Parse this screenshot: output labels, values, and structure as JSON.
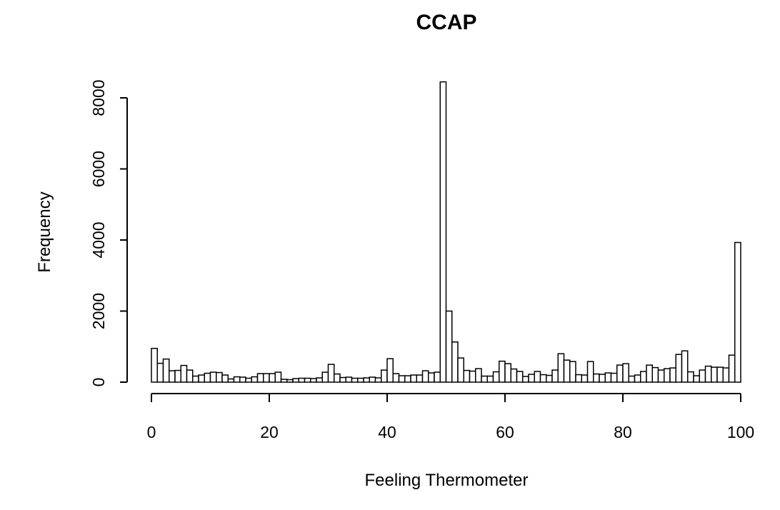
{
  "chart_data": {
    "type": "bar",
    "title": "CCAP",
    "xlabel": "Feeling Thermometer",
    "ylabel": "Frequency",
    "xlim": [
      0,
      100
    ],
    "ylim": [
      0,
      8000
    ],
    "x_ticks": [
      0,
      20,
      40,
      60,
      80,
      100
    ],
    "y_ticks": [
      0,
      2000,
      4000,
      6000,
      8000
    ],
    "bar_fill": "#ffffff",
    "bar_stroke": "#000000",
    "bin_width": 1,
    "bin_starts": [
      0,
      1,
      2,
      3,
      4,
      5,
      6,
      7,
      8,
      9,
      10,
      11,
      12,
      13,
      14,
      15,
      16,
      17,
      18,
      19,
      20,
      21,
      22,
      23,
      24,
      25,
      26,
      27,
      28,
      29,
      30,
      31,
      32,
      33,
      34,
      35,
      36,
      37,
      38,
      39,
      40,
      41,
      42,
      43,
      44,
      45,
      46,
      47,
      48,
      49,
      50,
      51,
      52,
      53,
      54,
      55,
      56,
      57,
      58,
      59,
      60,
      61,
      62,
      63,
      64,
      65,
      66,
      67,
      68,
      69,
      70,
      71,
      72,
      73,
      74,
      75,
      76,
      77,
      78,
      79,
      80,
      81,
      82,
      83,
      84,
      85,
      86,
      87,
      88,
      89,
      90,
      91,
      92,
      93,
      94,
      95,
      96,
      97,
      98,
      99
    ],
    "values": [
      950,
      530,
      650,
      320,
      330,
      470,
      340,
      170,
      200,
      250,
      280,
      270,
      200,
      90,
      150,
      140,
      110,
      150,
      240,
      240,
      240,
      280,
      80,
      70,
      100,
      110,
      110,
      100,
      120,
      280,
      500,
      230,
      130,
      140,
      110,
      110,
      120,
      140,
      120,
      340,
      660,
      240,
      180,
      180,
      200,
      200,
      320,
      260,
      280,
      8450,
      2000,
      1130,
      680,
      330,
      310,
      380,
      170,
      170,
      290,
      590,
      520,
      370,
      300,
      160,
      220,
      300,
      210,
      190,
      340,
      800,
      620,
      580,
      210,
      200,
      580,
      230,
      220,
      260,
      250,
      480,
      520,
      170,
      200,
      300,
      480,
      410,
      340,
      380,
      400,
      780,
      880,
      290,
      180,
      340,
      450,
      420,
      420,
      400,
      760,
      3930
    ]
  }
}
